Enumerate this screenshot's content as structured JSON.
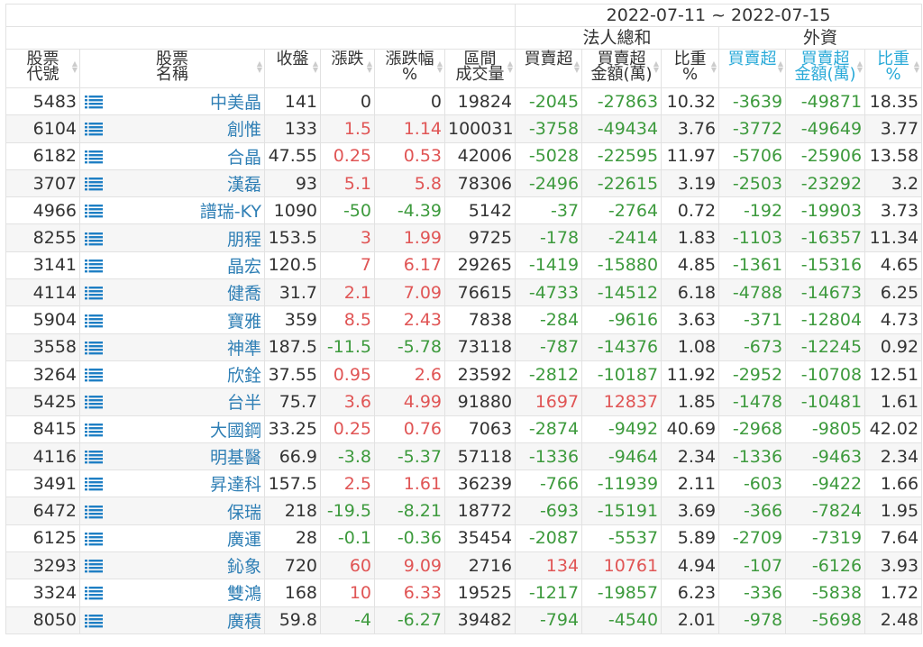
{
  "date_range": "2022-07-11 ~ 2022-07-15",
  "groups": {
    "institutional": "法人總和",
    "foreign": "外資"
  },
  "headers": [
    [
      "股票",
      "代號"
    ],
    [
      "股票",
      "名稱"
    ],
    [
      "收盤"
    ],
    [
      "漲跌"
    ],
    [
      "漲跌幅",
      "%"
    ],
    [
      "區間",
      "成交量"
    ],
    [
      "買賣超"
    ],
    [
      "買賣超",
      "金額(萬)"
    ],
    [
      "比重",
      "%"
    ],
    [
      "買賣超"
    ],
    [
      "買賣超",
      "金額(萬)"
    ],
    [
      "比重",
      "%"
    ]
  ],
  "colors": {
    "positive": "#e05555",
    "negative": "#3d9a3d",
    "name": "#2f7fb5",
    "foreign_header": "#2aaad8",
    "icon": "#1f7fc4"
  },
  "rows": [
    [
      "5483",
      "中美晶",
      "141",
      "0",
      "0",
      "19824",
      "-2045",
      "-27863",
      "10.32",
      "-3639",
      "-49871",
      "18.35"
    ],
    [
      "6104",
      "創惟",
      "133",
      "1.5",
      "1.14",
      "100031",
      "-3758",
      "-49434",
      "3.76",
      "-3772",
      "-49649",
      "3.77"
    ],
    [
      "6182",
      "合晶",
      "47.55",
      "0.25",
      "0.53",
      "42006",
      "-5028",
      "-22595",
      "11.97",
      "-5706",
      "-25906",
      "13.58"
    ],
    [
      "3707",
      "漢磊",
      "93",
      "5.1",
      "5.8",
      "78306",
      "-2496",
      "-22615",
      "3.19",
      "-2503",
      "-23292",
      "3.2"
    ],
    [
      "4966",
      "譜瑞-KY",
      "1090",
      "-50",
      "-4.39",
      "5142",
      "-37",
      "-2764",
      "0.72",
      "-192",
      "-19903",
      "3.73"
    ],
    [
      "8255",
      "朋程",
      "153.5",
      "3",
      "1.99",
      "9725",
      "-178",
      "-2414",
      "1.83",
      "-1103",
      "-16357",
      "11.34"
    ],
    [
      "3141",
      "晶宏",
      "120.5",
      "7",
      "6.17",
      "29265",
      "-1419",
      "-15880",
      "4.85",
      "-1361",
      "-15316",
      "4.65"
    ],
    [
      "4114",
      "健喬",
      "31.7",
      "2.1",
      "7.09",
      "76615",
      "-4733",
      "-14512",
      "6.18",
      "-4788",
      "-14673",
      "6.25"
    ],
    [
      "5904",
      "寶雅",
      "359",
      "8.5",
      "2.43",
      "7838",
      "-284",
      "-9616",
      "3.63",
      "-371",
      "-12804",
      "4.73"
    ],
    [
      "3558",
      "神準",
      "187.5",
      "-11.5",
      "-5.78",
      "73118",
      "-787",
      "-14376",
      "1.08",
      "-673",
      "-12245",
      "0.92"
    ],
    [
      "3264",
      "欣銓",
      "37.55",
      "0.95",
      "2.6",
      "23592",
      "-2812",
      "-10187",
      "11.92",
      "-2952",
      "-10708",
      "12.51"
    ],
    [
      "5425",
      "台半",
      "75.7",
      "3.6",
      "4.99",
      "91880",
      "1697",
      "12837",
      "1.85",
      "-1478",
      "-10481",
      "1.61"
    ],
    [
      "8415",
      "大國鋼",
      "33.25",
      "0.25",
      "0.76",
      "7063",
      "-2874",
      "-9492",
      "40.69",
      "-2968",
      "-9805",
      "42.02"
    ],
    [
      "4116",
      "明基醫",
      "66.9",
      "-3.8",
      "-5.37",
      "57118",
      "-1336",
      "-9464",
      "2.34",
      "-1336",
      "-9463",
      "2.34"
    ],
    [
      "3491",
      "昇達科",
      "157.5",
      "2.5",
      "1.61",
      "36239",
      "-766",
      "-11939",
      "2.11",
      "-603",
      "-9422",
      "1.66"
    ],
    [
      "6472",
      "保瑞",
      "218",
      "-19.5",
      "-8.21",
      "18772",
      "-693",
      "-15191",
      "3.69",
      "-366",
      "-7824",
      "1.95"
    ],
    [
      "6125",
      "廣運",
      "28",
      "-0.1",
      "-0.36",
      "35454",
      "-2087",
      "-5537",
      "5.89",
      "-2709",
      "-7319",
      "7.64"
    ],
    [
      "3293",
      "鈊象",
      "720",
      "60",
      "9.09",
      "2716",
      "134",
      "10761",
      "4.94",
      "-107",
      "-6126",
      "3.93"
    ],
    [
      "3324",
      "雙鴻",
      "168",
      "10",
      "6.33",
      "19525",
      "-1217",
      "-19857",
      "6.23",
      "-336",
      "-5838",
      "1.72"
    ],
    [
      "8050",
      "廣積",
      "59.8",
      "-4",
      "-6.27",
      "39482",
      "-794",
      "-4540",
      "2.01",
      "-978",
      "-5698",
      "2.48"
    ]
  ]
}
